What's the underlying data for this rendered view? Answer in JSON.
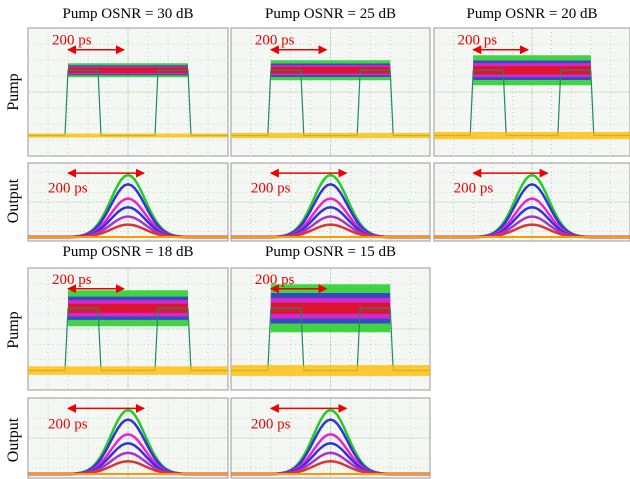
{
  "row_labels": {
    "pump": "Pump",
    "output": "Output"
  },
  "panels": [
    {
      "title": "Pump OSNR = 30 dB",
      "pump_annotation": "200 ps",
      "output_annotation": "200 ps"
    },
    {
      "title": "Pump OSNR = 25 dB",
      "pump_annotation": "200 ps",
      "output_annotation": "200 ps"
    },
    {
      "title": "Pump OSNR = 20 dB",
      "pump_annotation": "200 ps",
      "output_annotation": "200 ps"
    },
    {
      "title": "Pump OSNR = 18 dB",
      "pump_annotation": "200 ps",
      "output_annotation": "200 ps"
    },
    {
      "title": "Pump OSNR = 15 dB",
      "pump_annotation": "200 ps",
      "output_annotation": "200 ps"
    }
  ]
}
